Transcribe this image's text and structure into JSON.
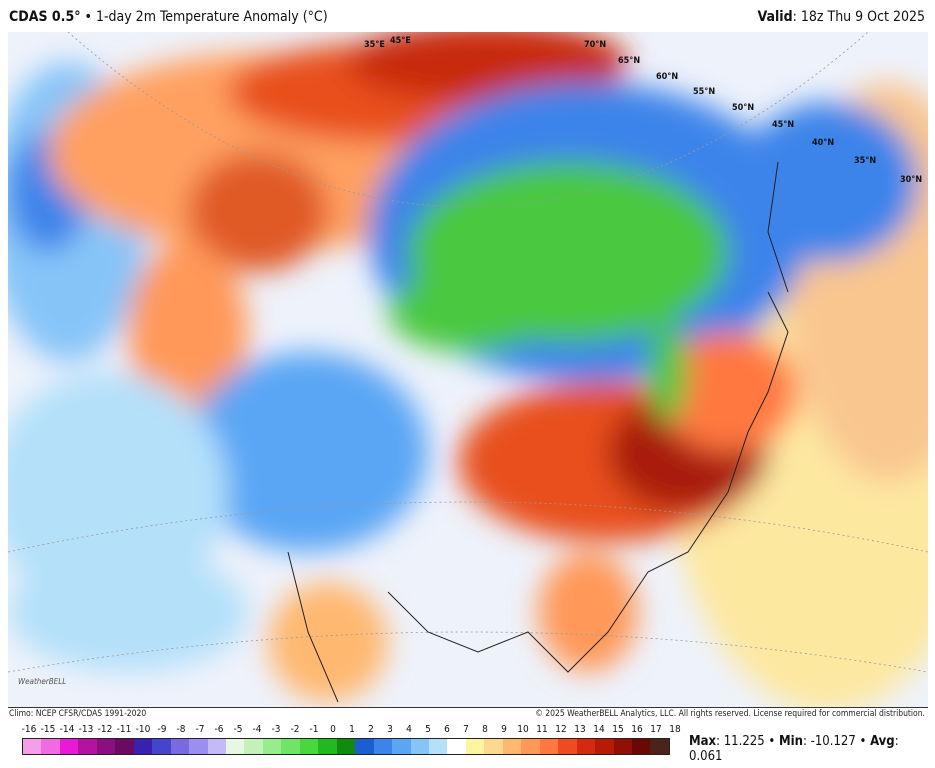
{
  "header": {
    "model": "CDAS 0.5°",
    "separator": "•",
    "product": "1-day 2m Temperature Anomaly (°C)",
    "valid_label": "Valid",
    "valid_time": ": 18z Thu 9 Oct 2025"
  },
  "footer": {
    "climo": "Climo: NCEP CFSR/CDAS 1991-2020",
    "copyright": "© 2025 WeatherBELL Analytics, LLC. All rights reserved. License required for commercial distribution."
  },
  "logo": {
    "text": "WeatherBELL"
  },
  "lat_labels": [
    "70°N",
    "65°N",
    "60°N",
    "55°N",
    "50°N",
    "45°N",
    "40°N",
    "35°N",
    "30°N"
  ],
  "lon_labels": [
    "35°E",
    "45°E"
  ],
  "colorbar": {
    "labels": [
      "-16",
      "-15",
      "-14",
      "-13",
      "-12",
      "-11",
      "-10",
      "-9",
      "-8",
      "-7",
      "-6",
      "-5",
      "-4",
      "-3",
      "-2",
      "-1",
      "0",
      "1",
      "2",
      "3",
      "4",
      "5",
      "6",
      "7",
      "8",
      "9",
      "10",
      "11",
      "12",
      "13",
      "14",
      "15",
      "16",
      "17",
      "18"
    ],
    "colors": [
      "#f59ee9",
      "#f06ae0",
      "#e81ad6",
      "#b4129f",
      "#8a0f80",
      "#6a0a60",
      "#3a20b0",
      "#4444cc",
      "#7a6ae0",
      "#9a8ef0",
      "#c4baf8",
      "#e6f8e4",
      "#c2f2b8",
      "#98ec8c",
      "#70e464",
      "#48d83e",
      "#22b820",
      "#108a10",
      "#1a5ed0",
      "#3c84ea",
      "#5aa6f4",
      "#86c4f8",
      "#b4e0fa",
      "#ffffff",
      "#fff4a0",
      "#ffd890",
      "#ffb870",
      "#ff9858",
      "#ff7840",
      "#f04a20",
      "#d42a10",
      "#b81a08",
      "#901006",
      "#6a0804",
      "#4a2418"
    ]
  },
  "stats": {
    "max_label": "Max",
    "max": ": 11.225",
    "min_label": "Min",
    "min": ": -10.127",
    "avg_label": "Avg",
    "avg": ": 0.061",
    "sep": " • "
  }
}
